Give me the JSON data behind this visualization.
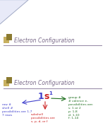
{
  "bg_color": "#ffffff",
  "slide1": {
    "title": "Electron Configuration",
    "title_color": "#7b6b8a",
    "title_fontsize": 5.5,
    "icon_color_dark": "#8b7a30",
    "icon_color_light": "#c8b060",
    "line_color": "#9b8faa",
    "corner_color": "#e8eaf8",
    "corner_edge": "#c0c8e0"
  },
  "slide2": {
    "title": "Electron Configuration",
    "title_color": "#7b6b8a",
    "title_fontsize": 5.5,
    "icon_color_dark": "#8b7a30",
    "icon_color_light": "#c8b060",
    "line_color": "#9b8faa",
    "notation_1": "1",
    "notation_s": "s",
    "notation_super": "1",
    "notation_1_color": "#4040cc",
    "notation_s_color": "#cc2020",
    "notation_super_color": "#4040cc",
    "arrow_left_color": "#4040cc",
    "arrow_mid_color": "#cc2020",
    "arrow_right_color": "#207020",
    "left_label_lines": [
      "row #",
      "shell #",
      "possibilities are 1-7",
      "7 rows"
    ],
    "left_label_color": "#4040cc",
    "mid_label_lines": [
      "subshell",
      "possibilities are",
      "s, p, d, or f"
    ],
    "mid_label_color": "#cc2020",
    "right_label_lines": [
      "group #",
      "# valence e-",
      "possibilities are:",
      "s: 1 or 2",
      "p: 1-8",
      "d: 1-10",
      "f: 1-14"
    ],
    "right_label_color": "#207020"
  }
}
